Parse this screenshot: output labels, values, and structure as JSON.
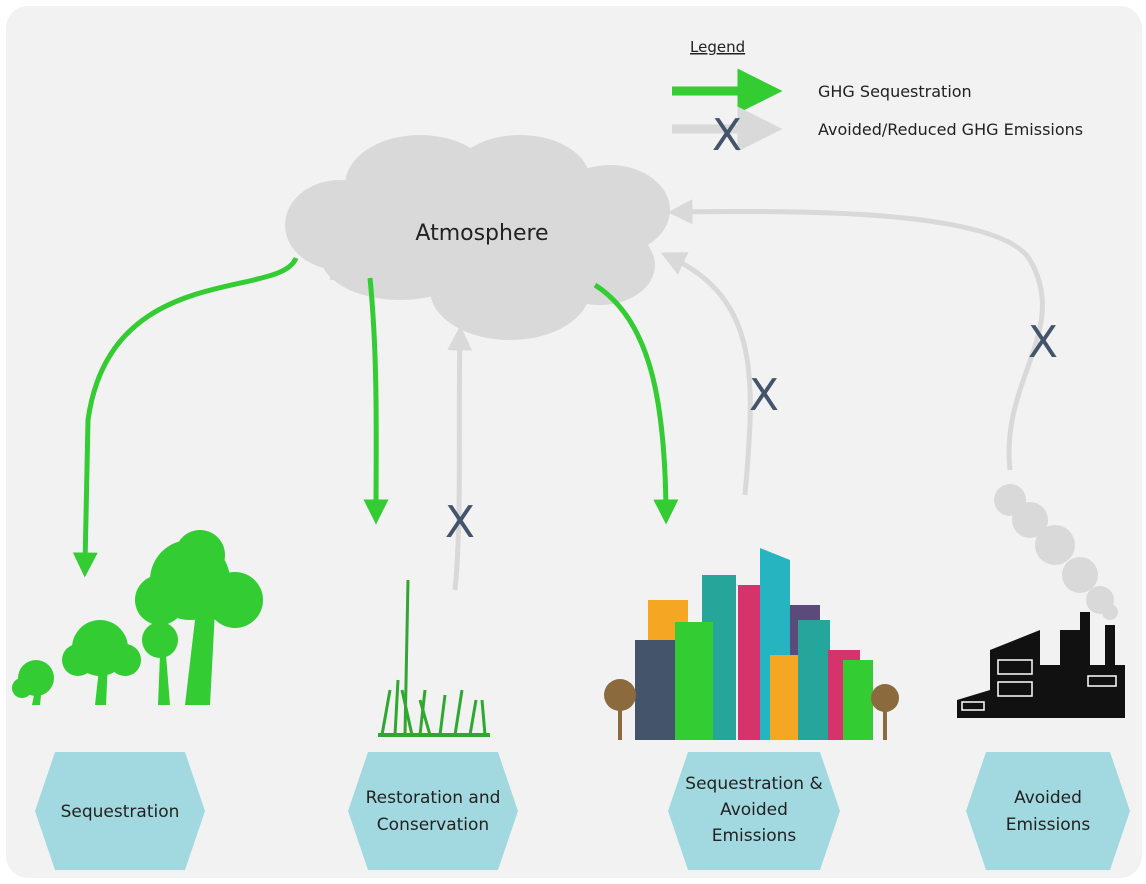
{
  "legend": {
    "title": "Legend",
    "items": [
      "GHG Sequestration",
      "Avoided/Reduced GHG Emissions"
    ]
  },
  "cross_mark": "X",
  "atmosphere": "Atmosphere",
  "categories": [
    {
      "lines": [
        "Sequestration"
      ]
    },
    {
      "lines": [
        "Restoration and",
        "Conservation"
      ]
    },
    {
      "lines": [
        "Sequestration &",
        "Avoided",
        "Emissions"
      ]
    },
    {
      "lines": [
        "Avoided",
        "Emissions"
      ]
    }
  ]
}
